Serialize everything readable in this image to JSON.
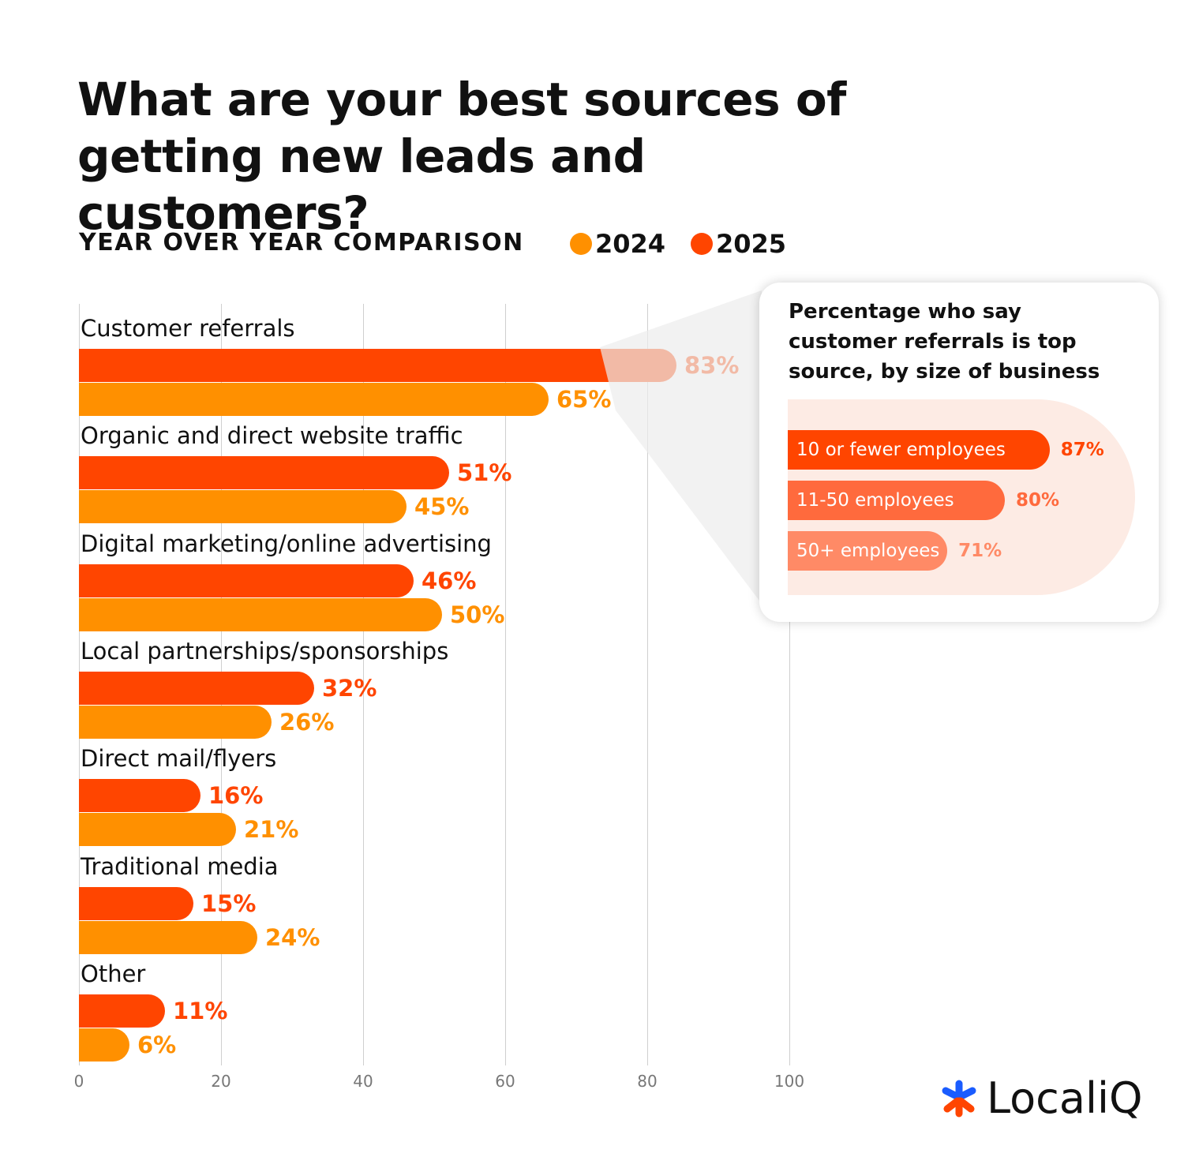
{
  "chart_data": {
    "type": "bar",
    "orientation": "horizontal",
    "title": "What are your best sources of getting new leads and customers?",
    "subtitle": "YEAR OVER YEAR COMPARISON",
    "categories": [
      "Customer referrals",
      "Organic and direct website traffic",
      "Digital marketing/online advertising",
      "Local partnerships/sponsorships",
      "Direct mail/flyers",
      "Traditional media",
      "Other"
    ],
    "series": [
      {
        "name": "2025",
        "color": "#ff4500",
        "values": [
          83,
          51,
          46,
          32,
          16,
          15,
          11
        ],
        "labels": [
          "83%",
          "51%",
          "46%",
          "32%",
          "16%",
          "15%",
          "11%"
        ]
      },
      {
        "name": "2024",
        "color": "#ff9000",
        "values": [
          65,
          45,
          50,
          26,
          21,
          24,
          6
        ],
        "labels": [
          "65%",
          "45%",
          "50%",
          "26%",
          "21%",
          "24%",
          "6%"
        ]
      }
    ],
    "xlim": [
      0,
      100
    ],
    "xticks": [
      "0",
      "20",
      "40",
      "60",
      "80",
      "100"
    ],
    "grid": true,
    "legend": "top",
    "inset": {
      "title": "Percentage who say customer referrals is top source, by size of business",
      "categories": [
        "10 or fewer employees",
        "11-50 employees",
        "50+ employees"
      ],
      "values": [
        87,
        80,
        71
      ],
      "labels": [
        "87%",
        "80%",
        "71%"
      ],
      "colors": [
        "#ff4500",
        "#ff6a3d",
        "#ff8a66"
      ]
    }
  },
  "logo": {
    "text": "LocaliQ"
  }
}
